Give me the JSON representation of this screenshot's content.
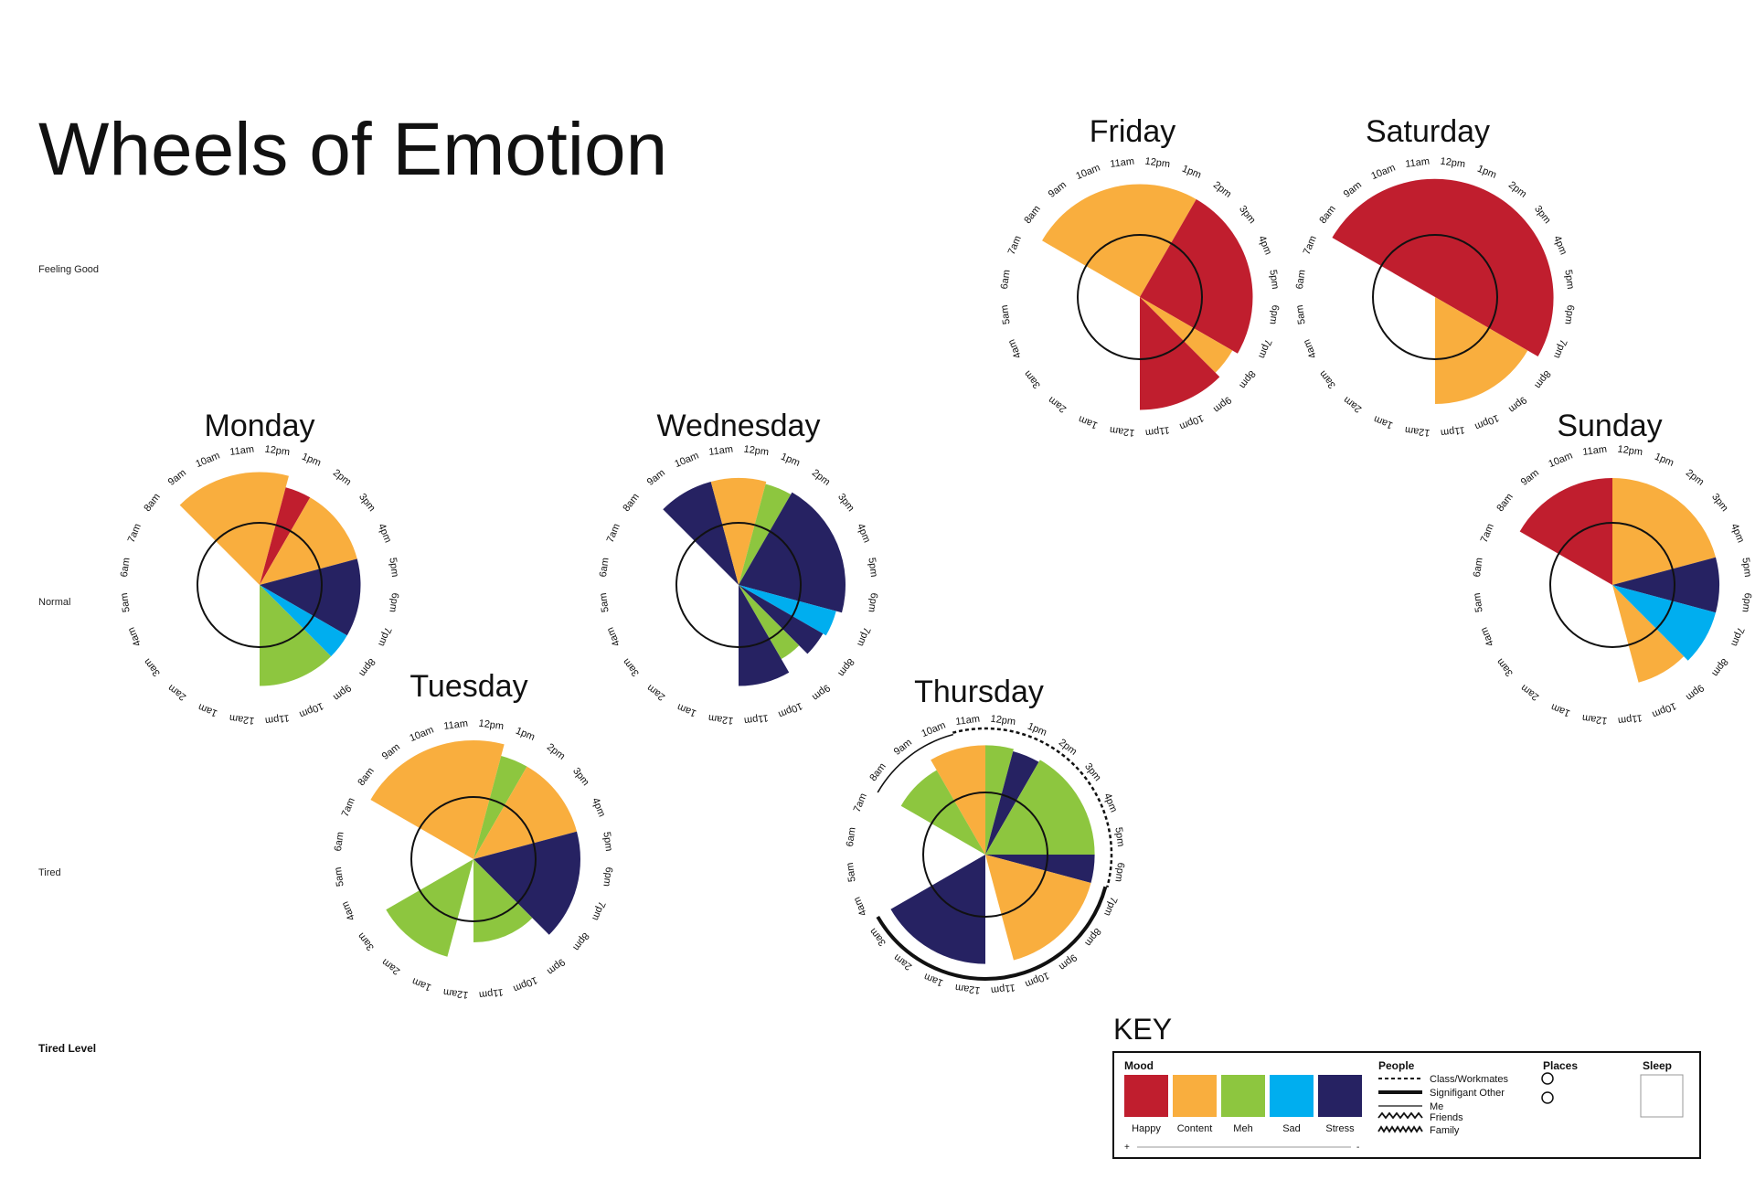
{
  "title": "Wheels of Emotion",
  "tired_scale": {
    "heading": "Tired Level",
    "labels": [
      "Feeling Good",
      "Normal",
      "Tired"
    ]
  },
  "hours": [
    "12pm",
    "1pm",
    "2pm",
    "3pm",
    "4pm",
    "5pm",
    "6pm",
    "7pm",
    "8pm",
    "9pm",
    "10pm",
    "11pm",
    "12am",
    "1am",
    "2am",
    "3am",
    "4am",
    "5am",
    "6am",
    "7am",
    "8am",
    "9am",
    "10am",
    "11am"
  ],
  "colors": {
    "Happy": "#c01e2e",
    "Content": "#f9ae3e",
    "Meh": "#8dc63f",
    "Sad": "#00aeef",
    "Stress": "#262262",
    "Sleep": "#ffffff"
  },
  "chart_data": [
    {
      "type": "polar-area",
      "day": "Monday",
      "segments": [
        {
          "start": "9am",
          "end": "1pm",
          "mood": "Content",
          "level": 0.95
        },
        {
          "start": "1pm",
          "end": "2pm",
          "mood": "Happy",
          "level": 0.85
        },
        {
          "start": "2pm",
          "end": "5pm",
          "mood": "Content",
          "level": 0.85
        },
        {
          "start": "5pm",
          "end": "8pm",
          "mood": "Stress",
          "level": 0.85
        },
        {
          "start": "8pm",
          "end": "9pm",
          "mood": "Sad",
          "level": 0.85
        },
        {
          "start": "9pm",
          "end": "12am",
          "mood": "Meh",
          "level": 0.85
        },
        {
          "start": "12am",
          "end": "9am",
          "mood": "Sleep",
          "level": 0
        }
      ]
    },
    {
      "type": "polar-area",
      "day": "Tuesday",
      "segments": [
        {
          "start": "8am",
          "end": "1pm",
          "mood": "Content",
          "level": 1.0
        },
        {
          "start": "1pm",
          "end": "2pm",
          "mood": "Meh",
          "level": 0.9
        },
        {
          "start": "2pm",
          "end": "5pm",
          "mood": "Content",
          "level": 0.9
        },
        {
          "start": "5pm",
          "end": "9pm",
          "mood": "Stress",
          "level": 0.9
        },
        {
          "start": "9pm",
          "end": "12am",
          "mood": "Meh",
          "level": 0.7
        },
        {
          "start": "12am",
          "end": "1am",
          "mood": "Sleep",
          "level": 0
        },
        {
          "start": "1am",
          "end": "4am",
          "mood": "Meh",
          "level": 0.85
        },
        {
          "start": "4am",
          "end": "8am",
          "mood": "Sleep",
          "level": 0
        }
      ]
    },
    {
      "type": "polar-area",
      "day": "Wednesday",
      "segments": [
        {
          "start": "9am",
          "end": "11am",
          "mood": "Stress",
          "level": 0.9
        },
        {
          "start": "11am",
          "end": "1pm",
          "mood": "Content",
          "level": 0.9
        },
        {
          "start": "1pm",
          "end": "2pm",
          "mood": "Meh",
          "level": 0.88
        },
        {
          "start": "2pm",
          "end": "7pm",
          "mood": "Stress",
          "level": 0.9
        },
        {
          "start": "7pm",
          "end": "8pm",
          "mood": "Sad",
          "level": 0.85
        },
        {
          "start": "8pm",
          "end": "9pm",
          "mood": "Stress",
          "level": 0.82
        },
        {
          "start": "9pm",
          "end": "10pm",
          "mood": "Meh",
          "level": 0.72
        },
        {
          "start": "10pm",
          "end": "12am",
          "mood": "Stress",
          "level": 0.85
        },
        {
          "start": "12am",
          "end": "9am",
          "mood": "Sleep",
          "level": 0
        }
      ]
    },
    {
      "type": "polar-area",
      "day": "Thursday",
      "segments": [
        {
          "start": "10am",
          "end": "12pm",
          "mood": "Content",
          "level": 0.92
        },
        {
          "start": "12pm",
          "end": "1pm",
          "mood": "Meh",
          "level": 0.92
        },
        {
          "start": "1pm",
          "end": "2pm",
          "mood": "Stress",
          "level": 0.9
        },
        {
          "start": "2pm",
          "end": "6pm",
          "mood": "Meh",
          "level": 0.92
        },
        {
          "start": "6pm",
          "end": "7pm",
          "mood": "Stress",
          "level": 0.92
        },
        {
          "start": "7pm",
          "end": "11pm",
          "mood": "Content",
          "level": 0.92
        },
        {
          "start": "11pm",
          "end": "12am",
          "mood": "Sleep",
          "level": 0
        },
        {
          "start": "12am",
          "end": "4am",
          "mood": "Stress",
          "level": 0.92
        },
        {
          "start": "4am",
          "end": "8am",
          "mood": "Sleep",
          "level": 0
        },
        {
          "start": "8am",
          "end": "10am",
          "mood": "Meh",
          "level": 0.82
        }
      ],
      "people": [
        {
          "group": "Class/Workmates",
          "start": "11am",
          "end": "7pm"
        },
        {
          "group": "Signifigant Other",
          "start": "7pm",
          "end": "12am"
        },
        {
          "group": "Signifigant Other",
          "start": "12am",
          "end": "4am"
        },
        {
          "group": "Me",
          "start": "8am",
          "end": "11am"
        }
      ]
    },
    {
      "type": "polar-area",
      "day": "Friday",
      "segments": [
        {
          "start": "8am",
          "end": "2pm",
          "mood": "Content",
          "level": 0.95
        },
        {
          "start": "2pm",
          "end": "8pm",
          "mood": "Happy",
          "level": 0.95
        },
        {
          "start": "8pm",
          "end": "9pm",
          "mood": "Content",
          "level": 0.9
        },
        {
          "start": "9pm",
          "end": "12am",
          "mood": "Happy",
          "level": 0.95
        },
        {
          "start": "12am",
          "end": "8am",
          "mood": "Sleep",
          "level": 0
        }
      ]
    },
    {
      "type": "polar-area",
      "day": "Saturday",
      "segments": [
        {
          "start": "8am",
          "end": "8pm",
          "mood": "Happy",
          "level": 1.0
        },
        {
          "start": "8pm",
          "end": "12am",
          "mood": "Content",
          "level": 0.9
        },
        {
          "start": "12am",
          "end": "8am",
          "mood": "Sleep",
          "level": 0
        }
      ]
    },
    {
      "type": "polar-area",
      "day": "Sunday",
      "segments": [
        {
          "start": "8am",
          "end": "12pm",
          "mood": "Happy",
          "level": 0.9
        },
        {
          "start": "12pm",
          "end": "5pm",
          "mood": "Content",
          "level": 0.9
        },
        {
          "start": "5pm",
          "end": "7pm",
          "mood": "Stress",
          "level": 0.9
        },
        {
          "start": "7pm",
          "end": "9pm",
          "mood": "Sad",
          "level": 0.9
        },
        {
          "start": "9pm",
          "end": "11pm",
          "mood": "Content",
          "level": 0.85
        },
        {
          "start": "11pm",
          "end": "8am",
          "mood": "Sleep",
          "level": 0
        }
      ]
    }
  ],
  "key": {
    "title": "KEY",
    "mood": {
      "heading": "Mood",
      "items": [
        "Happy",
        "Content",
        "Meh",
        "Sad",
        "Stress"
      ],
      "scale_plus": "+",
      "scale_minus": "-"
    },
    "people": {
      "heading": "People",
      "items": [
        {
          "label": "Class/Workmates",
          "style": "dashed"
        },
        {
          "label": "Signifigant Other",
          "style": "thick"
        },
        {
          "label": "Me",
          "style": "thin"
        },
        {
          "label": "Friends",
          "style": "zigzag"
        },
        {
          "label": "Family",
          "style": "zigzag"
        }
      ]
    },
    "places": {
      "heading": "Places"
    },
    "sleep": {
      "heading": "Sleep"
    }
  }
}
